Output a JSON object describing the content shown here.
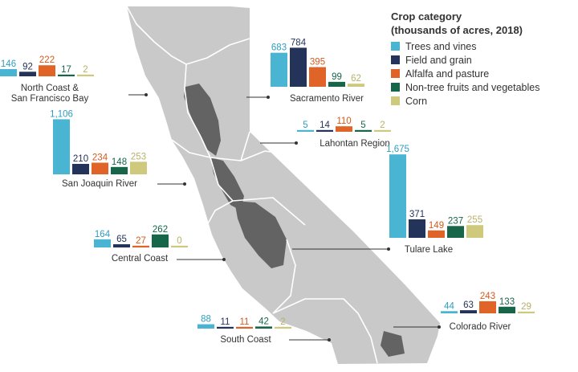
{
  "legend": {
    "title_line1": "Crop category",
    "title_line2": "(thousands of acres, 2018)"
  },
  "colors": {
    "trees_and_vines": "#4ab5d3",
    "field_and_grain": "#24335a",
    "alfalfa_and_pasture": "#e06428",
    "non_tree_fruits_and_vegetables": "#17664a",
    "corn": "#cfc97e",
    "map_fill": "#c9c9c9",
    "farmland": "#636363",
    "region_border": "#ffffff",
    "leader_line": "#333333"
  },
  "chart_data": {
    "type": "bar",
    "title": "Crop category (thousands of acres, 2018)",
    "unit": "thousands of acres",
    "categories": [
      "Trees and vines",
      "Field and grain",
      "Alfalfa and pasture",
      "Non-tree fruits and vegetables",
      "Corn"
    ],
    "regions": [
      {
        "name": "North Coast & San Francisco Bay",
        "label_lines": [
          "North Coast &",
          "San Francisco Bay"
        ],
        "values": [
          146,
          92,
          222,
          17,
          2
        ]
      },
      {
        "name": "Sacramento River",
        "label_lines": [
          "Sacramento River"
        ],
        "values": [
          683,
          784,
          395,
          99,
          62
        ]
      },
      {
        "name": "Lahontan Region",
        "label_lines": [
          "Lahontan Region"
        ],
        "values": [
          5,
          14,
          110,
          5,
          2
        ]
      },
      {
        "name": "San Joaquin River",
        "label_lines": [
          "San Joaquin River"
        ],
        "values": [
          1106,
          210,
          234,
          148,
          253
        ]
      },
      {
        "name": "Tulare Lake",
        "label_lines": [
          "Tulare Lake"
        ],
        "values": [
          1675,
          371,
          149,
          237,
          255
        ]
      },
      {
        "name": "Central Coast",
        "label_lines": [
          "Central Coast"
        ],
        "values": [
          164,
          65,
          27,
          262,
          0
        ]
      },
      {
        "name": "Colorado River",
        "label_lines": [
          "Colorado River"
        ],
        "values": [
          44,
          63,
          243,
          133,
          29
        ]
      },
      {
        "name": "South Coast",
        "label_lines": [
          "South Coast"
        ],
        "values": [
          88,
          11,
          11,
          42,
          2
        ]
      }
    ],
    "legend_position": "top-right",
    "grid": false
  }
}
